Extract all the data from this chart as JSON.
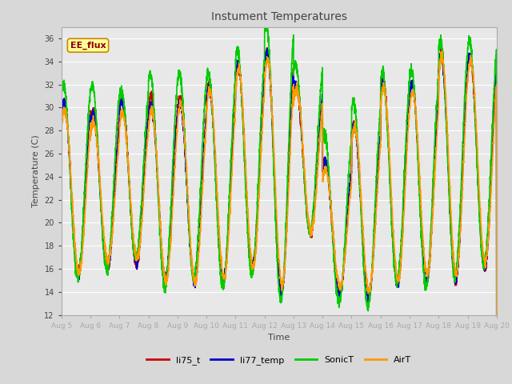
{
  "title": "Instument Temperatures",
  "xlabel": "Time",
  "ylabel": "Temperature (C)",
  "ylim": [
    12,
    37
  ],
  "yticks": [
    12,
    14,
    16,
    18,
    20,
    22,
    24,
    26,
    28,
    30,
    32,
    34,
    36
  ],
  "xtick_labels": [
    "Aug 5",
    "Aug 6",
    "Aug 7",
    "Aug 8",
    "Aug 9",
    "Aug 10",
    "Aug 11",
    "Aug 12",
    "Aug 13",
    "Aug 14",
    "Aug 15",
    "Aug 16",
    "Aug 17",
    "Aug 18",
    "Aug 19",
    "Aug 20"
  ],
  "colors": {
    "li75_t": "#cc0000",
    "li77_temp": "#0000cc",
    "SonicT": "#00cc00",
    "AirT": "#ff9900"
  },
  "annotation_text": "EE_flux",
  "annotation_bg": "#ffff99",
  "annotation_border": "#cc8800",
  "plot_bg": "#e8e8e8",
  "fig_bg": "#d8d8d8",
  "grid_color": "#ffffff",
  "title_color": "#444444",
  "axis_label_color": "#444444",
  "linewidth": 1.2,
  "day_mins": [
    15.5,
    16.0,
    16.5,
    15.2,
    15.0,
    15.0,
    16.0,
    13.8,
    19.0,
    13.8,
    13.5,
    14.5,
    15.0,
    15.0,
    16.0
  ],
  "day_maxs": [
    30.5,
    29.5,
    30.5,
    30.5,
    30.5,
    32.0,
    33.5,
    35.0,
    32.0,
    25.5,
    28.5,
    32.0,
    32.0,
    34.5,
    34.5
  ]
}
